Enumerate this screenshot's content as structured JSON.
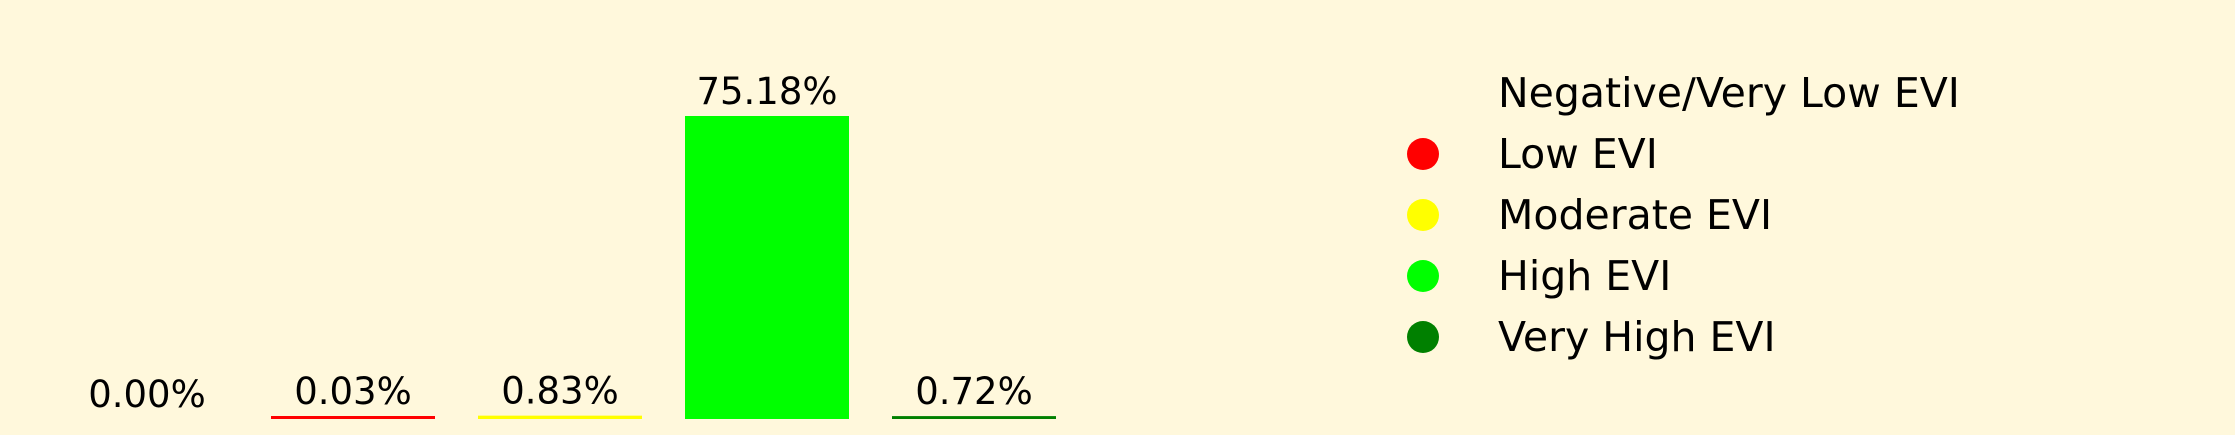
{
  "chart_data": {
    "type": "bar",
    "categories": [
      "Negative/Very Low EVI",
      "Low EVI",
      "Moderate EVI",
      "High EVI",
      "Very High EVI"
    ],
    "values": [
      0.0,
      0.03,
      0.83,
      75.18,
      0.72
    ],
    "data_labels": [
      "0.00%",
      "0.03%",
      "0.83%",
      "75.18%",
      "0.72%"
    ],
    "colors": [
      "#fff8dc",
      "#ff0000",
      "#ffff00",
      "#00ff00",
      "#008000"
    ],
    "ylim": [
      0,
      75.18
    ],
    "legend": {
      "placement": "right",
      "entries": [
        {
          "label": "Negative/Very Low EVI",
          "color": "#fff8dc"
        },
        {
          "label": "Low EVI",
          "color": "#ff0000"
        },
        {
          "label": "Moderate EVI",
          "color": "#ffff00"
        },
        {
          "label": "High EVI",
          "color": "#00ff00"
        },
        {
          "label": "Very High EVI",
          "color": "#008000"
        }
      ]
    },
    "background": "#fff8dc",
    "grid": false,
    "axes_visible": false
  }
}
